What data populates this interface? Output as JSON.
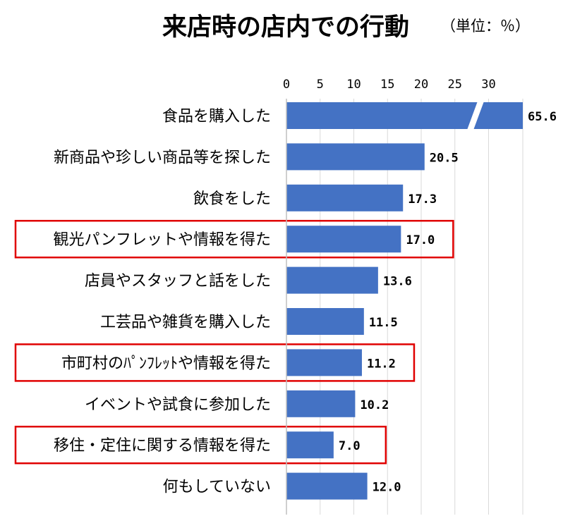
{
  "chart_data": {
    "type": "bar",
    "orientation": "horizontal",
    "title": "来店時の店内での行動",
    "subtitle": "（単位：％）",
    "categories": [
      "食品を購入した",
      "新商品や珍しい商品等を探した",
      "飲食をした",
      "観光パンフレットや情報を得た",
      "店員やスタッフと話をした",
      "工芸品や雑貨を購入した",
      "市町村のﾊﾟﾝﾌﾚｯﾄや情報を得た",
      "イベントや試食に参加した",
      "移住・定住に関する情報を得た",
      "何もしていない"
    ],
    "values": [
      65.6,
      20.5,
      17.3,
      17.0,
      13.6,
      11.5,
      11.2,
      10.2,
      7.0,
      12.0
    ],
    "value_labels": [
      "65.6",
      "20.5",
      "17.3",
      "17.0",
      "13.6",
      "11.5",
      "11.2",
      "10.2",
      "7.0",
      "12.0"
    ],
    "x_ticks": [
      "0",
      "5",
      "10",
      "15",
      "20",
      "25",
      "30"
    ],
    "xlim": [
      0,
      35
    ],
    "axis_break_on": "食品を購入した",
    "highlighted": [
      "観光パンフレットや情報を得た",
      "市町村のﾊﾟﾝﾌﾚｯﾄや情報を得た",
      "移住・定住に関する情報を得た"
    ],
    "bar_color": "#4472c4",
    "highlight_color": "#e00000",
    "grid": true,
    "legend": "none"
  }
}
